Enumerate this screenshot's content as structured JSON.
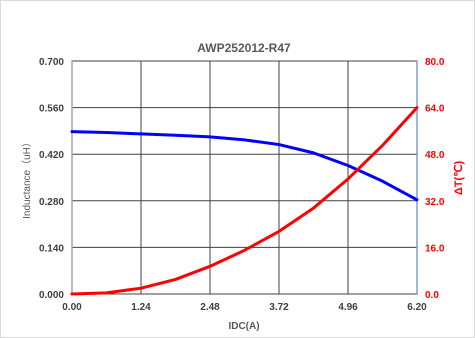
{
  "chart_data": {
    "type": "line",
    "title": "AWP252012-R47",
    "xlabel": "IDC(A)",
    "ylabel_left": "Inductance（uH）",
    "ylabel_right": "ΔT(℃)",
    "xlim": [
      0,
      6.2
    ],
    "ylim_left": [
      0,
      0.7
    ],
    "ylim_right": [
      0,
      80
    ],
    "x_ticks": [
      "0.00",
      "1.24",
      "2.48",
      "3.72",
      "4.96",
      "6.20"
    ],
    "y_left_ticks": [
      "0.000",
      "0.140",
      "0.280",
      "0.420",
      "0.560",
      "0.700"
    ],
    "y_right_ticks": [
      "0.0",
      "16.0",
      "32.0",
      "48.0",
      "64.0",
      "80.0"
    ],
    "grid": true,
    "series": [
      {
        "axis": "left",
        "color": "#0000ff",
        "x": [
          0,
          0.62,
          1.24,
          1.86,
          2.48,
          3.1,
          3.72,
          4.34,
          4.96,
          5.58,
          6.2
        ],
        "y": [
          0.488,
          0.485,
          0.481,
          0.477,
          0.472,
          0.463,
          0.449,
          0.424,
          0.386,
          0.339,
          0.283
        ]
      },
      {
        "axis": "right",
        "color": "#ff0000",
        "x": [
          0,
          0.62,
          1.24,
          1.86,
          2.48,
          3.1,
          3.72,
          4.34,
          4.96,
          5.58,
          6.2
        ],
        "y": [
          0,
          0.4,
          2,
          5,
          9.5,
          15,
          21.5,
          29.5,
          39.5,
          51,
          64
        ]
      }
    ]
  }
}
